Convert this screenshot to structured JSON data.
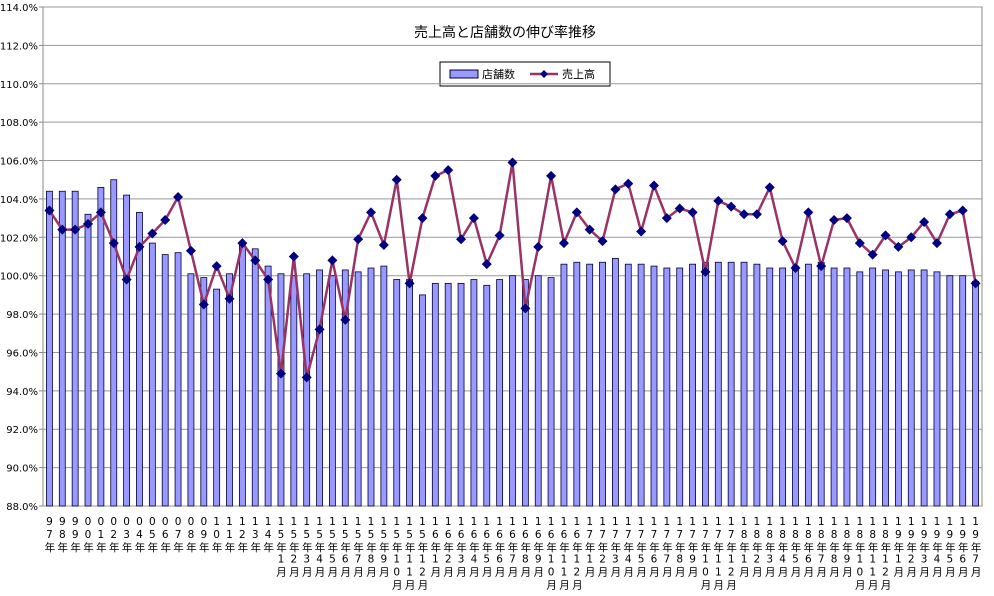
{
  "chart_data": {
    "type": "bar",
    "title": "売上高と店舗数の伸び率推移",
    "categories": [
      "97年",
      "98年",
      "99年",
      "00年",
      "01年",
      "02年",
      "03年",
      "04年",
      "05年",
      "06年",
      "07年",
      "08年",
      "09年",
      "10年",
      "11年",
      "12年",
      "13年",
      "14年",
      "15年1月",
      "15年2月",
      "15年3月",
      "15年4月",
      "15年5月",
      "15年6月",
      "15年7月",
      "15年8月",
      "15年9月",
      "15年10月",
      "15年11月",
      "15年12月",
      "16年1月",
      "16年2月",
      "16年3月",
      "16年4月",
      "16年5月",
      "16年6月",
      "16年7月",
      "16年8月",
      "16年9月",
      "16年10月",
      "16年11月",
      "16年12月",
      "17年1月",
      "17年2月",
      "17年3月",
      "17年4月",
      "17年5月",
      "17年6月",
      "17年7月",
      "17年8月",
      "17年9月",
      "17年10月",
      "17年11月",
      "17年12月",
      "18年1月",
      "18年2月",
      "18年3月",
      "18年4月",
      "18年5月",
      "18年6月",
      "18年7月",
      "18年8月",
      "18年9月",
      "18年10月",
      "18年11月",
      "18年12月",
      "19年1月",
      "19年2月",
      "19年3月",
      "19年4月",
      "19年5月",
      "19年6月",
      "19年7月"
    ],
    "series": [
      {
        "name": "店舗数",
        "type": "bar",
        "color": "#9999ff",
        "values": [
          104.4,
          104.4,
          104.4,
          103.2,
          104.6,
          105.0,
          104.2,
          103.3,
          101.7,
          101.1,
          101.2,
          100.1,
          99.9,
          99.3,
          100.1,
          101.7,
          101.4,
          100.5,
          100.1,
          100.0,
          100.1,
          100.3,
          100.0,
          100.3,
          100.2,
          100.4,
          100.5,
          99.8,
          99.8,
          99.0,
          99.6,
          99.6,
          99.6,
          99.8,
          99.5,
          99.8,
          100.0,
          99.8,
          100.0,
          99.9,
          100.6,
          100.7,
          100.6,
          100.7,
          100.9,
          100.6,
          100.6,
          100.5,
          100.4,
          100.4,
          100.6,
          100.7,
          100.7,
          100.7,
          100.7,
          100.6,
          100.4,
          100.4,
          100.5,
          100.6,
          100.7,
          100.4,
          100.4,
          100.2,
          100.4,
          100.3,
          100.2,
          100.3,
          100.3,
          100.2,
          100.0,
          100.0,
          99.7
        ]
      },
      {
        "name": "売上高",
        "type": "line",
        "color": "#993366",
        "marker_color": "#000080",
        "values": [
          103.4,
          102.4,
          102.4,
          102.7,
          103.3,
          101.7,
          99.8,
          101.5,
          102.2,
          102.9,
          104.1,
          101.3,
          98.5,
          100.5,
          98.8,
          101.7,
          100.8,
          99.8,
          94.9,
          101.0,
          94.7,
          97.2,
          100.8,
          97.7,
          101.9,
          103.3,
          101.6,
          105.0,
          99.6,
          103.0,
          105.2,
          105.5,
          101.9,
          103.0,
          100.6,
          102.1,
          105.9,
          98.3,
          101.5,
          105.2,
          101.7,
          103.3,
          102.4,
          101.8,
          104.5,
          104.8,
          102.3,
          104.7,
          103.0,
          103.5,
          103.3,
          100.2,
          103.9,
          103.6,
          103.2,
          103.2,
          104.6,
          101.8,
          100.4,
          103.3,
          100.5,
          102.9,
          103.0,
          101.7,
          101.1,
          102.1,
          101.5,
          102.0,
          102.8,
          101.7,
          103.2,
          103.4,
          99.6
        ]
      }
    ],
    "ylim": [
      88,
      114
    ],
    "yticks": [
      {
        "value": 88,
        "label": "88.0%"
      },
      {
        "value": 90,
        "label": "90.0%"
      },
      {
        "value": 92,
        "label": "92.0%"
      },
      {
        "value": 94,
        "label": "94.0%"
      },
      {
        "value": 96,
        "label": "96.0%"
      },
      {
        "value": 98,
        "label": "98.0%"
      },
      {
        "value": 100,
        "label": "100.0%"
      },
      {
        "value": 102,
        "label": "102.0%"
      },
      {
        "value": 104,
        "label": "104.0%"
      },
      {
        "value": 106,
        "label": "106.0%"
      },
      {
        "value": 108,
        "label": "108.0%"
      },
      {
        "value": 110,
        "label": "110.0%"
      },
      {
        "value": 112,
        "label": "112.0%"
      },
      {
        "value": 114,
        "label": "114.0%"
      }
    ],
    "grid": true,
    "legend": "top"
  }
}
